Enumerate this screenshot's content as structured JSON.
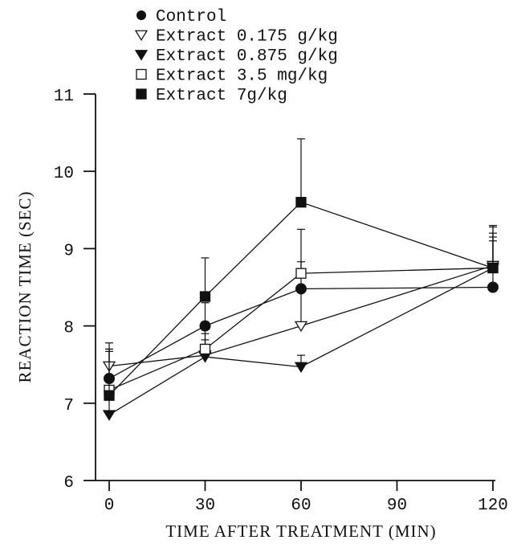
{
  "chart_data": {
    "type": "line",
    "xlabel": "TIME AFTER TREATMENT (MIN)",
    "ylabel": "REACTION TIME (SEC)",
    "xlim": [
      0,
      120
    ],
    "ylim": [
      6,
      11
    ],
    "x_ticks": [
      0,
      30,
      60,
      90,
      120
    ],
    "y_ticks": [
      6,
      7,
      8,
      9,
      10,
      11
    ],
    "x_tick_labels": [
      "0",
      "30",
      "60",
      "90",
      "120"
    ],
    "y_tick_labels": [
      "6",
      "7",
      "8",
      "9",
      "10",
      "11"
    ],
    "grid": false,
    "legend_position": "top-left",
    "series": [
      {
        "name": "Control",
        "marker": "filled-circle",
        "x": [
          0,
          30,
          60,
          120
        ],
        "y": [
          7.32,
          8.0,
          8.48,
          8.5
        ],
        "err": [
          0.38,
          0.3,
          0.35,
          0.6
        ]
      },
      {
        "name": "Extract 0.175 g/kg",
        "marker": "open-triangle-down",
        "x": [
          0,
          30,
          60,
          120
        ],
        "y": [
          7.48,
          7.62,
          8.0,
          8.78
        ],
        "err": [
          0.3,
          0.2,
          0.45,
          0.5
        ]
      },
      {
        "name": "Extract 0.875 g/kg",
        "marker": "filled-triangle-down",
        "x": [
          0,
          30,
          60,
          120
        ],
        "y": [
          6.85,
          7.6,
          7.47,
          8.75
        ],
        "err": [
          0.3,
          0.3,
          0.15,
          0.4
        ]
      },
      {
        "name": "Extract 3.5 mg/kg",
        "marker": "open-square",
        "x": [
          0,
          30,
          60,
          120
        ],
        "y": [
          7.17,
          7.7,
          8.68,
          8.75
        ],
        "err": [
          0.5,
          0.35,
          0.57,
          0.45
        ]
      },
      {
        "name": "Extract 7g/kg",
        "marker": "filled-square",
        "x": [
          0,
          30,
          60,
          120
        ],
        "y": [
          7.1,
          8.38,
          9.6,
          8.75
        ],
        "err": [
          0.6,
          0.5,
          0.82,
          0.55
        ]
      }
    ]
  }
}
